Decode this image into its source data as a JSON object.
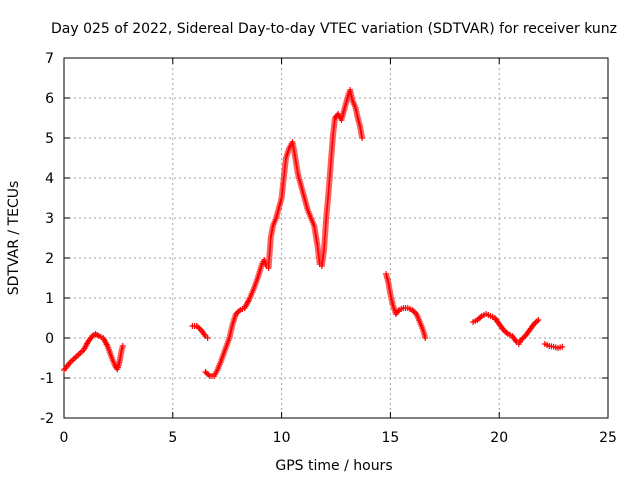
{
  "chart_data": {
    "type": "scatter",
    "title": "Day 025 of 2022, Sidereal Day-to-day VTEC variation (SDTVAR) for receiver kunz",
    "xlabel": "GPS time / hours",
    "ylabel": "SDTVAR / TECUs",
    "xlim": [
      0,
      25
    ],
    "ylim": [
      -2,
      7
    ],
    "xticks": [
      "0",
      "5",
      "10",
      "15",
      "20",
      "25"
    ],
    "yticks": [
      "-2",
      "-1",
      "0",
      "1",
      "2",
      "3",
      "4",
      "5",
      "6",
      "7"
    ],
    "grid": true,
    "marker": "+",
    "color": "#ff0000",
    "series": [
      {
        "name": "SDTVAR",
        "segments": [
          [
            [
              0.0,
              -0.8
            ],
            [
              0.3,
              -0.6
            ],
            [
              0.6,
              -0.45
            ],
            [
              0.9,
              -0.3
            ],
            [
              1.1,
              -0.1
            ],
            [
              1.3,
              0.05
            ],
            [
              1.45,
              0.1
            ],
            [
              1.6,
              0.05
            ],
            [
              1.8,
              0.0
            ],
            [
              2.0,
              -0.2
            ],
            [
              2.2,
              -0.5
            ],
            [
              2.35,
              -0.7
            ],
            [
              2.45,
              -0.78
            ],
            [
              2.55,
              -0.6
            ],
            [
              2.65,
              -0.3
            ],
            [
              2.7,
              -0.2
            ]
          ],
          [
            [
              5.9,
              0.3
            ],
            [
              6.1,
              0.3
            ],
            [
              6.3,
              0.2
            ],
            [
              6.5,
              0.05
            ],
            [
              6.6,
              0.0
            ]
          ],
          [
            [
              6.5,
              -0.85
            ],
            [
              6.7,
              -0.95
            ],
            [
              6.9,
              -0.95
            ],
            [
              7.05,
              -0.8
            ],
            [
              7.2,
              -0.6
            ],
            [
              7.4,
              -0.3
            ],
            [
              7.6,
              0.0
            ],
            [
              7.75,
              0.35
            ],
            [
              7.9,
              0.6
            ],
            [
              8.1,
              0.7
            ],
            [
              8.3,
              0.75
            ],
            [
              8.5,
              0.95
            ],
            [
              8.7,
              1.2
            ],
            [
              8.9,
              1.5
            ],
            [
              9.1,
              1.85
            ],
            [
              9.2,
              1.95
            ],
            [
              9.3,
              1.8
            ],
            [
              9.4,
              1.75
            ],
            [
              9.5,
              2.5
            ],
            [
              9.6,
              2.8
            ],
            [
              9.75,
              3.0
            ],
            [
              9.9,
              3.3
            ],
            [
              10.0,
              3.5
            ],
            [
              10.1,
              4.0
            ],
            [
              10.2,
              4.5
            ],
            [
              10.35,
              4.75
            ],
            [
              10.5,
              4.9
            ],
            [
              10.6,
              4.6
            ],
            [
              10.75,
              4.1
            ],
            [
              10.9,
              3.8
            ],
            [
              11.05,
              3.5
            ],
            [
              11.2,
              3.2
            ],
            [
              11.35,
              3.0
            ],
            [
              11.5,
              2.8
            ],
            [
              11.65,
              2.3
            ],
            [
              11.75,
              1.85
            ],
            [
              11.85,
              1.8
            ],
            [
              11.95,
              2.2
            ],
            [
              12.05,
              3.0
            ],
            [
              12.15,
              3.6
            ],
            [
              12.25,
              4.3
            ],
            [
              12.35,
              5.0
            ],
            [
              12.45,
              5.5
            ],
            [
              12.6,
              5.6
            ],
            [
              12.75,
              5.45
            ],
            [
              12.9,
              5.75
            ],
            [
              13.05,
              6.05
            ],
            [
              13.15,
              6.2
            ],
            [
              13.25,
              5.95
            ],
            [
              13.4,
              5.75
            ],
            [
              13.5,
              5.5
            ],
            [
              13.6,
              5.3
            ],
            [
              13.7,
              5.0
            ]
          ],
          [
            [
              14.8,
              1.6
            ],
            [
              14.9,
              1.4
            ],
            [
              15.0,
              1.1
            ],
            [
              15.1,
              0.85
            ],
            [
              15.25,
              0.6
            ],
            [
              15.4,
              0.7
            ],
            [
              15.6,
              0.75
            ],
            [
              15.8,
              0.75
            ],
            [
              16.0,
              0.7
            ],
            [
              16.2,
              0.6
            ],
            [
              16.35,
              0.4
            ],
            [
              16.5,
              0.2
            ],
            [
              16.6,
              0.0
            ]
          ],
          [
            [
              18.8,
              0.4
            ],
            [
              19.0,
              0.45
            ],
            [
              19.2,
              0.55
            ],
            [
              19.4,
              0.6
            ],
            [
              19.6,
              0.55
            ],
            [
              19.8,
              0.5
            ],
            [
              20.0,
              0.35
            ],
            [
              20.2,
              0.2
            ],
            [
              20.4,
              0.1
            ],
            [
              20.6,
              0.05
            ],
            [
              20.8,
              -0.1
            ],
            [
              20.9,
              -0.15
            ],
            [
              21.0,
              -0.05
            ],
            [
              21.2,
              0.05
            ],
            [
              21.4,
              0.2
            ],
            [
              21.6,
              0.35
            ],
            [
              21.8,
              0.45
            ]
          ],
          [
            [
              22.1,
              -0.15
            ],
            [
              22.3,
              -0.2
            ],
            [
              22.5,
              -0.22
            ],
            [
              22.7,
              -0.25
            ],
            [
              22.9,
              -0.22
            ]
          ]
        ]
      }
    ]
  }
}
